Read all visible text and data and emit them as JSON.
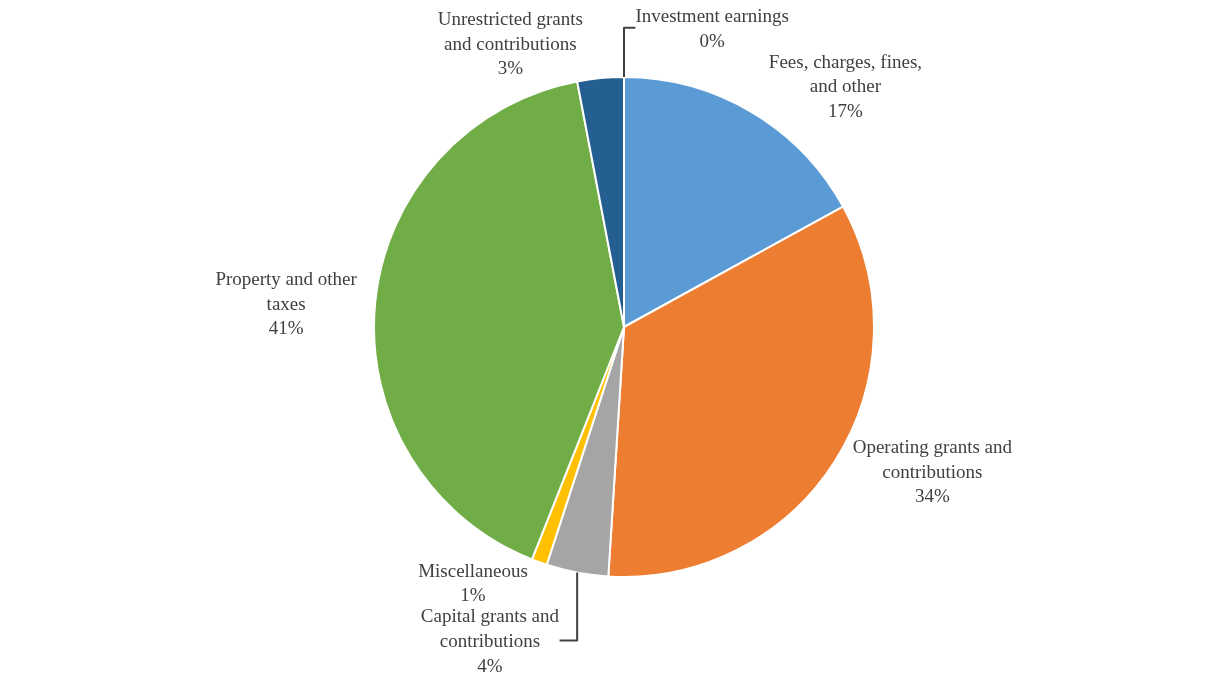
{
  "chart_data": {
    "type": "pie",
    "categories": [
      "Fees, charges, fines, and other",
      "Operating grants and contributions",
      "Capital grants and contributions",
      "Miscellaneous",
      "Property and other taxes",
      "Unrestricted grants and contributions",
      "Investment earnings"
    ],
    "values": [
      17,
      34,
      4,
      1,
      41,
      3,
      0
    ],
    "value_labels": [
      "17%",
      "34%",
      "4%",
      "1%",
      "41%",
      "3%",
      "0%"
    ],
    "colors": [
      "#5b9bd5",
      "#ed7d31",
      "#a5a5a5",
      "#ffc000",
      "#70ad47",
      "#255e91",
      "#9e480e"
    ],
    "legend": false
  }
}
